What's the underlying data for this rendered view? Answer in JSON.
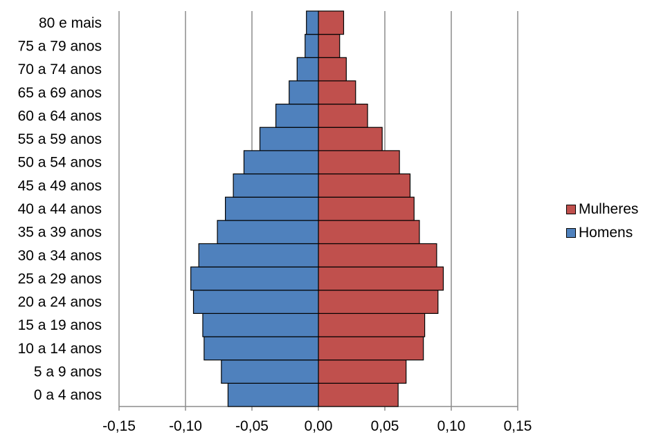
{
  "chart_data": {
    "type": "bar",
    "orientation": "horizontal",
    "stacked": true,
    "categories": [
      "0 a 4 anos",
      "5 a 9 anos",
      "10 a 14 anos",
      "15 a 19 anos",
      "20 a 24 anos",
      "25 a 29 anos",
      "30 a 34 anos",
      "35 a 39 anos",
      "40 a 44 anos",
      "45 a 49 anos",
      "50 a 54 anos",
      "55 a 59 anos",
      "60 a 64 anos",
      "65 a 69 anos",
      "70 a 74 anos",
      "75 a 79 anos",
      "80 e mais"
    ],
    "series": [
      {
        "name": "Mulheres",
        "color": "#c0504d",
        "values": [
          0.06,
          0.066,
          0.079,
          0.08,
          0.09,
          0.094,
          0.089,
          0.076,
          0.072,
          0.069,
          0.061,
          0.048,
          0.037,
          0.028,
          0.021,
          0.016,
          0.019
        ]
      },
      {
        "name": "Homens",
        "color": "#4f81bd",
        "values": [
          -0.068,
          -0.073,
          -0.086,
          -0.087,
          -0.094,
          -0.096,
          -0.09,
          -0.076,
          -0.07,
          -0.064,
          -0.056,
          -0.044,
          -0.032,
          -0.022,
          -0.016,
          -0.01,
          -0.009
        ]
      }
    ],
    "xlim": [
      -0.15,
      0.15
    ],
    "x_ticks": [
      "-0,15",
      "-0,10",
      "-0,05",
      "0,00",
      "0,05",
      "0,10",
      "0,15"
    ],
    "grid": true,
    "legend_position": "right",
    "title": "",
    "xlabel": "",
    "ylabel": ""
  },
  "legend": {
    "items": [
      {
        "label": "Mulheres",
        "color": "#c0504d"
      },
      {
        "label": "Homens",
        "color": "#4f81bd"
      }
    ]
  }
}
